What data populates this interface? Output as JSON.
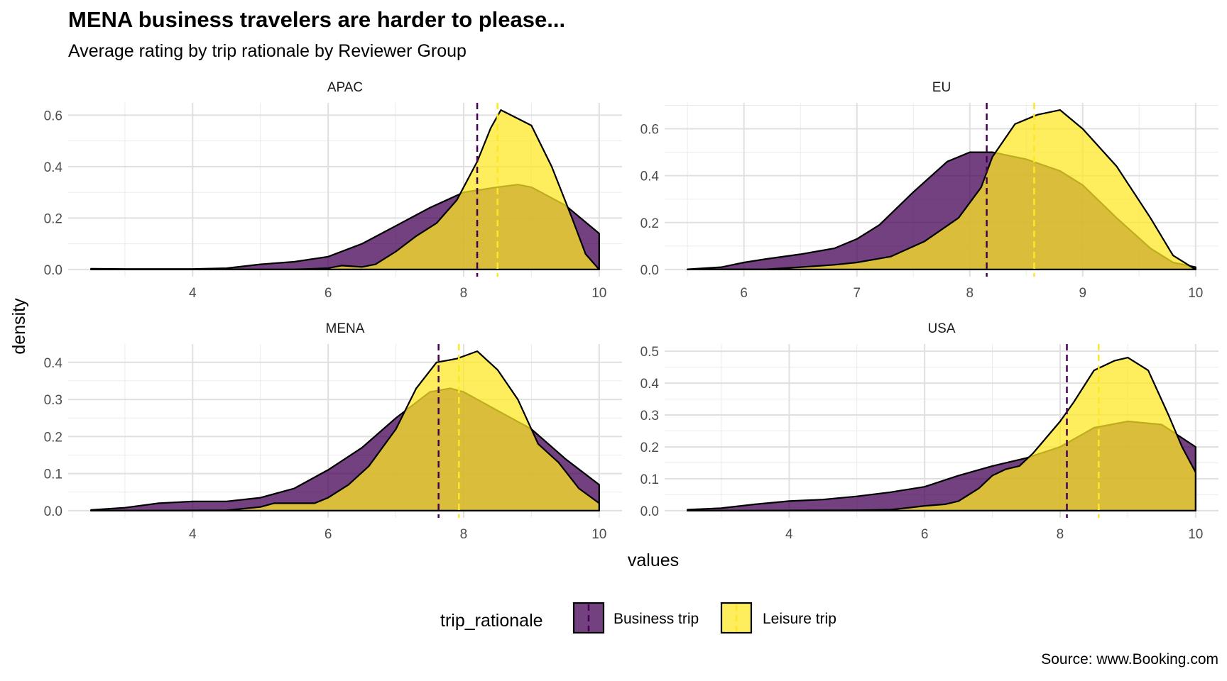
{
  "title": "MENA business travelers are harder to please...",
  "subtitle": "Average rating by trip rationale by Reviewer Group",
  "caption": "Source: www.Booking.com",
  "chart_data": {
    "type": "area",
    "chart_subtype": "density",
    "xlabel": "values",
    "ylabel": "density",
    "grid": true,
    "legend": {
      "title": "trip_rationale",
      "position": "bottom",
      "entries": [
        "Business trip",
        "Leisure trip"
      ]
    },
    "series_colors": {
      "Business trip": "#440154",
      "Leisure trip": "#FDE725"
    },
    "panels": [
      {
        "facet": "APAC",
        "xlim": [
          2.5,
          10
        ],
        "ylim": [
          0,
          0.62
        ],
        "x_ticks": [
          4,
          6,
          8,
          10
        ],
        "y_ticks": [
          0,
          0.2,
          0.4,
          0.6
        ],
        "x_tick_labels": [
          "4",
          "6",
          "8",
          "10"
        ],
        "y_tick_labels": [
          "0.0",
          "0.2",
          "0.4",
          "0.6"
        ],
        "series": [
          {
            "name": "Business trip",
            "mean": 8.2,
            "x": [
              2.5,
              3,
              3.5,
              4,
              4.5,
              5,
              5.5,
              6,
              6.5,
              7,
              7.5,
              8,
              8.5,
              8.8,
              9,
              9.5,
              10
            ],
            "y": [
              0.003,
              0.002,
              0.002,
              0.002,
              0.005,
              0.02,
              0.03,
              0.05,
              0.1,
              0.17,
              0.24,
              0.3,
              0.32,
              0.33,
              0.32,
              0.25,
              0.14
            ]
          },
          {
            "name": "Leisure trip",
            "mean": 8.5,
            "x": [
              2.5,
              5.5,
              6,
              6.2,
              6.5,
              6.7,
              7,
              7.3,
              7.6,
              7.9,
              8.2,
              8.4,
              8.55,
              8.7,
              9,
              9.3,
              9.6,
              9.8,
              10
            ],
            "y": [
              0,
              0,
              0.005,
              0.015,
              0.01,
              0.02,
              0.07,
              0.13,
              0.18,
              0.27,
              0.42,
              0.55,
              0.62,
              0.6,
              0.56,
              0.4,
              0.2,
              0.06,
              0
            ]
          }
        ]
      },
      {
        "facet": "EU",
        "xlim": [
          5.5,
          10
        ],
        "ylim": [
          0,
          0.68
        ],
        "x_ticks": [
          6,
          7,
          8,
          9,
          10
        ],
        "y_ticks": [
          0,
          0.2,
          0.4,
          0.6
        ],
        "x_tick_labels": [
          "6",
          "7",
          "8",
          "9",
          "10"
        ],
        "y_tick_labels": [
          "0.0",
          "0.2",
          "0.4",
          "0.6"
        ],
        "series": [
          {
            "name": "Business trip",
            "mean": 8.15,
            "x": [
              5.5,
              5.8,
              6,
              6.2,
              6.5,
              6.8,
              7,
              7.2,
              7.5,
              7.8,
              8,
              8.2,
              8.5,
              8.8,
              9,
              9.3,
              9.6,
              9.8,
              10
            ],
            "y": [
              0.001,
              0.01,
              0.03,
              0.045,
              0.065,
              0.09,
              0.13,
              0.19,
              0.33,
              0.46,
              0.5,
              0.5,
              0.47,
              0.42,
              0.36,
              0.22,
              0.09,
              0.03,
              0.01
            ]
          },
          {
            "name": "Leisure trip",
            "mean": 8.57,
            "x": [
              5.5,
              6.2,
              6.5,
              6.8,
              7,
              7.3,
              7.6,
              7.9,
              8.1,
              8.2,
              8.4,
              8.6,
              8.8,
              9,
              9.3,
              9.6,
              9.8,
              10
            ],
            "y": [
              0,
              0.001,
              0.01,
              0.02,
              0.03,
              0.055,
              0.12,
              0.22,
              0.35,
              0.48,
              0.62,
              0.66,
              0.68,
              0.6,
              0.44,
              0.22,
              0.06,
              0
            ]
          }
        ]
      },
      {
        "facet": "MENA",
        "xlim": [
          2.5,
          10
        ],
        "ylim": [
          0,
          0.43
        ],
        "x_ticks": [
          4,
          6,
          8,
          10
        ],
        "y_ticks": [
          0,
          0.1,
          0.2,
          0.3,
          0.4
        ],
        "x_tick_labels": [
          "4",
          "6",
          "8",
          "10"
        ],
        "y_tick_labels": [
          "0.0",
          "0.1",
          "0.2",
          "0.3",
          "0.4"
        ],
        "series": [
          {
            "name": "Business trip",
            "mean": 7.63,
            "x": [
              2.5,
              3,
              3.5,
              4,
              4.5,
              5,
              5.5,
              6,
              6.5,
              7,
              7.5,
              7.8,
              8,
              8.5,
              9,
              9.5,
              10
            ],
            "y": [
              0.002,
              0.008,
              0.02,
              0.025,
              0.025,
              0.035,
              0.06,
              0.11,
              0.17,
              0.25,
              0.32,
              0.33,
              0.32,
              0.27,
              0.22,
              0.14,
              0.07
            ]
          },
          {
            "name": "Leisure trip",
            "mean": 7.93,
            "x": [
              2.5,
              4.5,
              5,
              5.2,
              5.5,
              5.8,
              6,
              6.3,
              6.6,
              7,
              7.3,
              7.6,
              7.9,
              8.2,
              8.5,
              8.8,
              9.1,
              9.4,
              9.7,
              10
            ],
            "y": [
              0,
              0.001,
              0.01,
              0.02,
              0.02,
              0.02,
              0.035,
              0.07,
              0.12,
              0.22,
              0.33,
              0.4,
              0.41,
              0.43,
              0.38,
              0.3,
              0.18,
              0.13,
              0.06,
              0.02
            ]
          }
        ]
      },
      {
        "facet": "USA",
        "xlim": [
          2.5,
          10
        ],
        "ylim": [
          0,
          0.5
        ],
        "x_ticks": [
          4,
          6,
          8,
          10
        ],
        "y_ticks": [
          0,
          0.1,
          0.2,
          0.3,
          0.4,
          0.5
        ],
        "x_tick_labels": [
          "4",
          "6",
          "8",
          "10"
        ],
        "y_tick_labels": [
          "0.0",
          "0.1",
          "0.2",
          "0.3",
          "0.4",
          "0.5"
        ],
        "series": [
          {
            "name": "Business trip",
            "mean": 8.1,
            "x": [
              2.5,
              3,
              3.5,
              4,
              4.5,
              5,
              5.5,
              6,
              6.5,
              7,
              7.5,
              8,
              8.5,
              9,
              9.5,
              10
            ],
            "y": [
              0.003,
              0.008,
              0.02,
              0.03,
              0.035,
              0.045,
              0.058,
              0.075,
              0.11,
              0.14,
              0.165,
              0.2,
              0.26,
              0.28,
              0.27,
              0.2
            ]
          },
          {
            "name": "Leisure trip",
            "mean": 8.57,
            "x": [
              2.5,
              5,
              5.5,
              5.8,
              6,
              6.3,
              6.5,
              6.8,
              7,
              7.2,
              7.4,
              7.6,
              7.8,
              8,
              8.2,
              8.5,
              8.8,
              9,
              9.3,
              9.6,
              9.8,
              10
            ],
            "y": [
              0,
              0.001,
              0.003,
              0.01,
              0.015,
              0.02,
              0.03,
              0.07,
              0.11,
              0.13,
              0.14,
              0.18,
              0.23,
              0.28,
              0.34,
              0.44,
              0.47,
              0.48,
              0.44,
              0.3,
              0.2,
              0.12
            ]
          }
        ]
      }
    ]
  }
}
